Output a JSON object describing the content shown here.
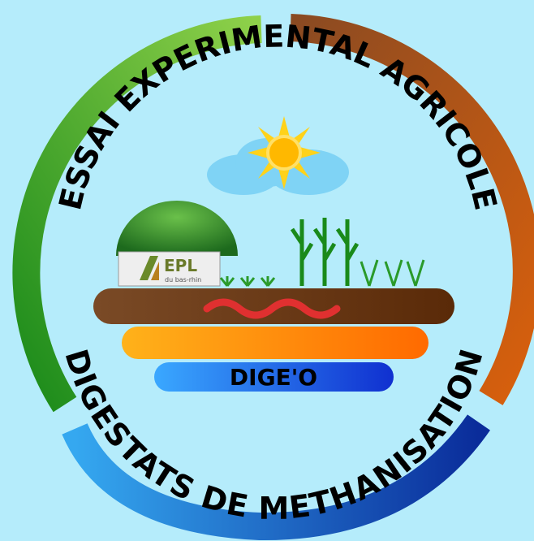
{
  "logo": {
    "top_text": "ESSAI EXPERIMENTAL AGRICOLE",
    "bottom_text": "DIGESTATS DE METHANISATION",
    "badge": {
      "title": "EPL",
      "subtitle": "du bas-rhin"
    },
    "center_label": "DIGE'O"
  }
}
